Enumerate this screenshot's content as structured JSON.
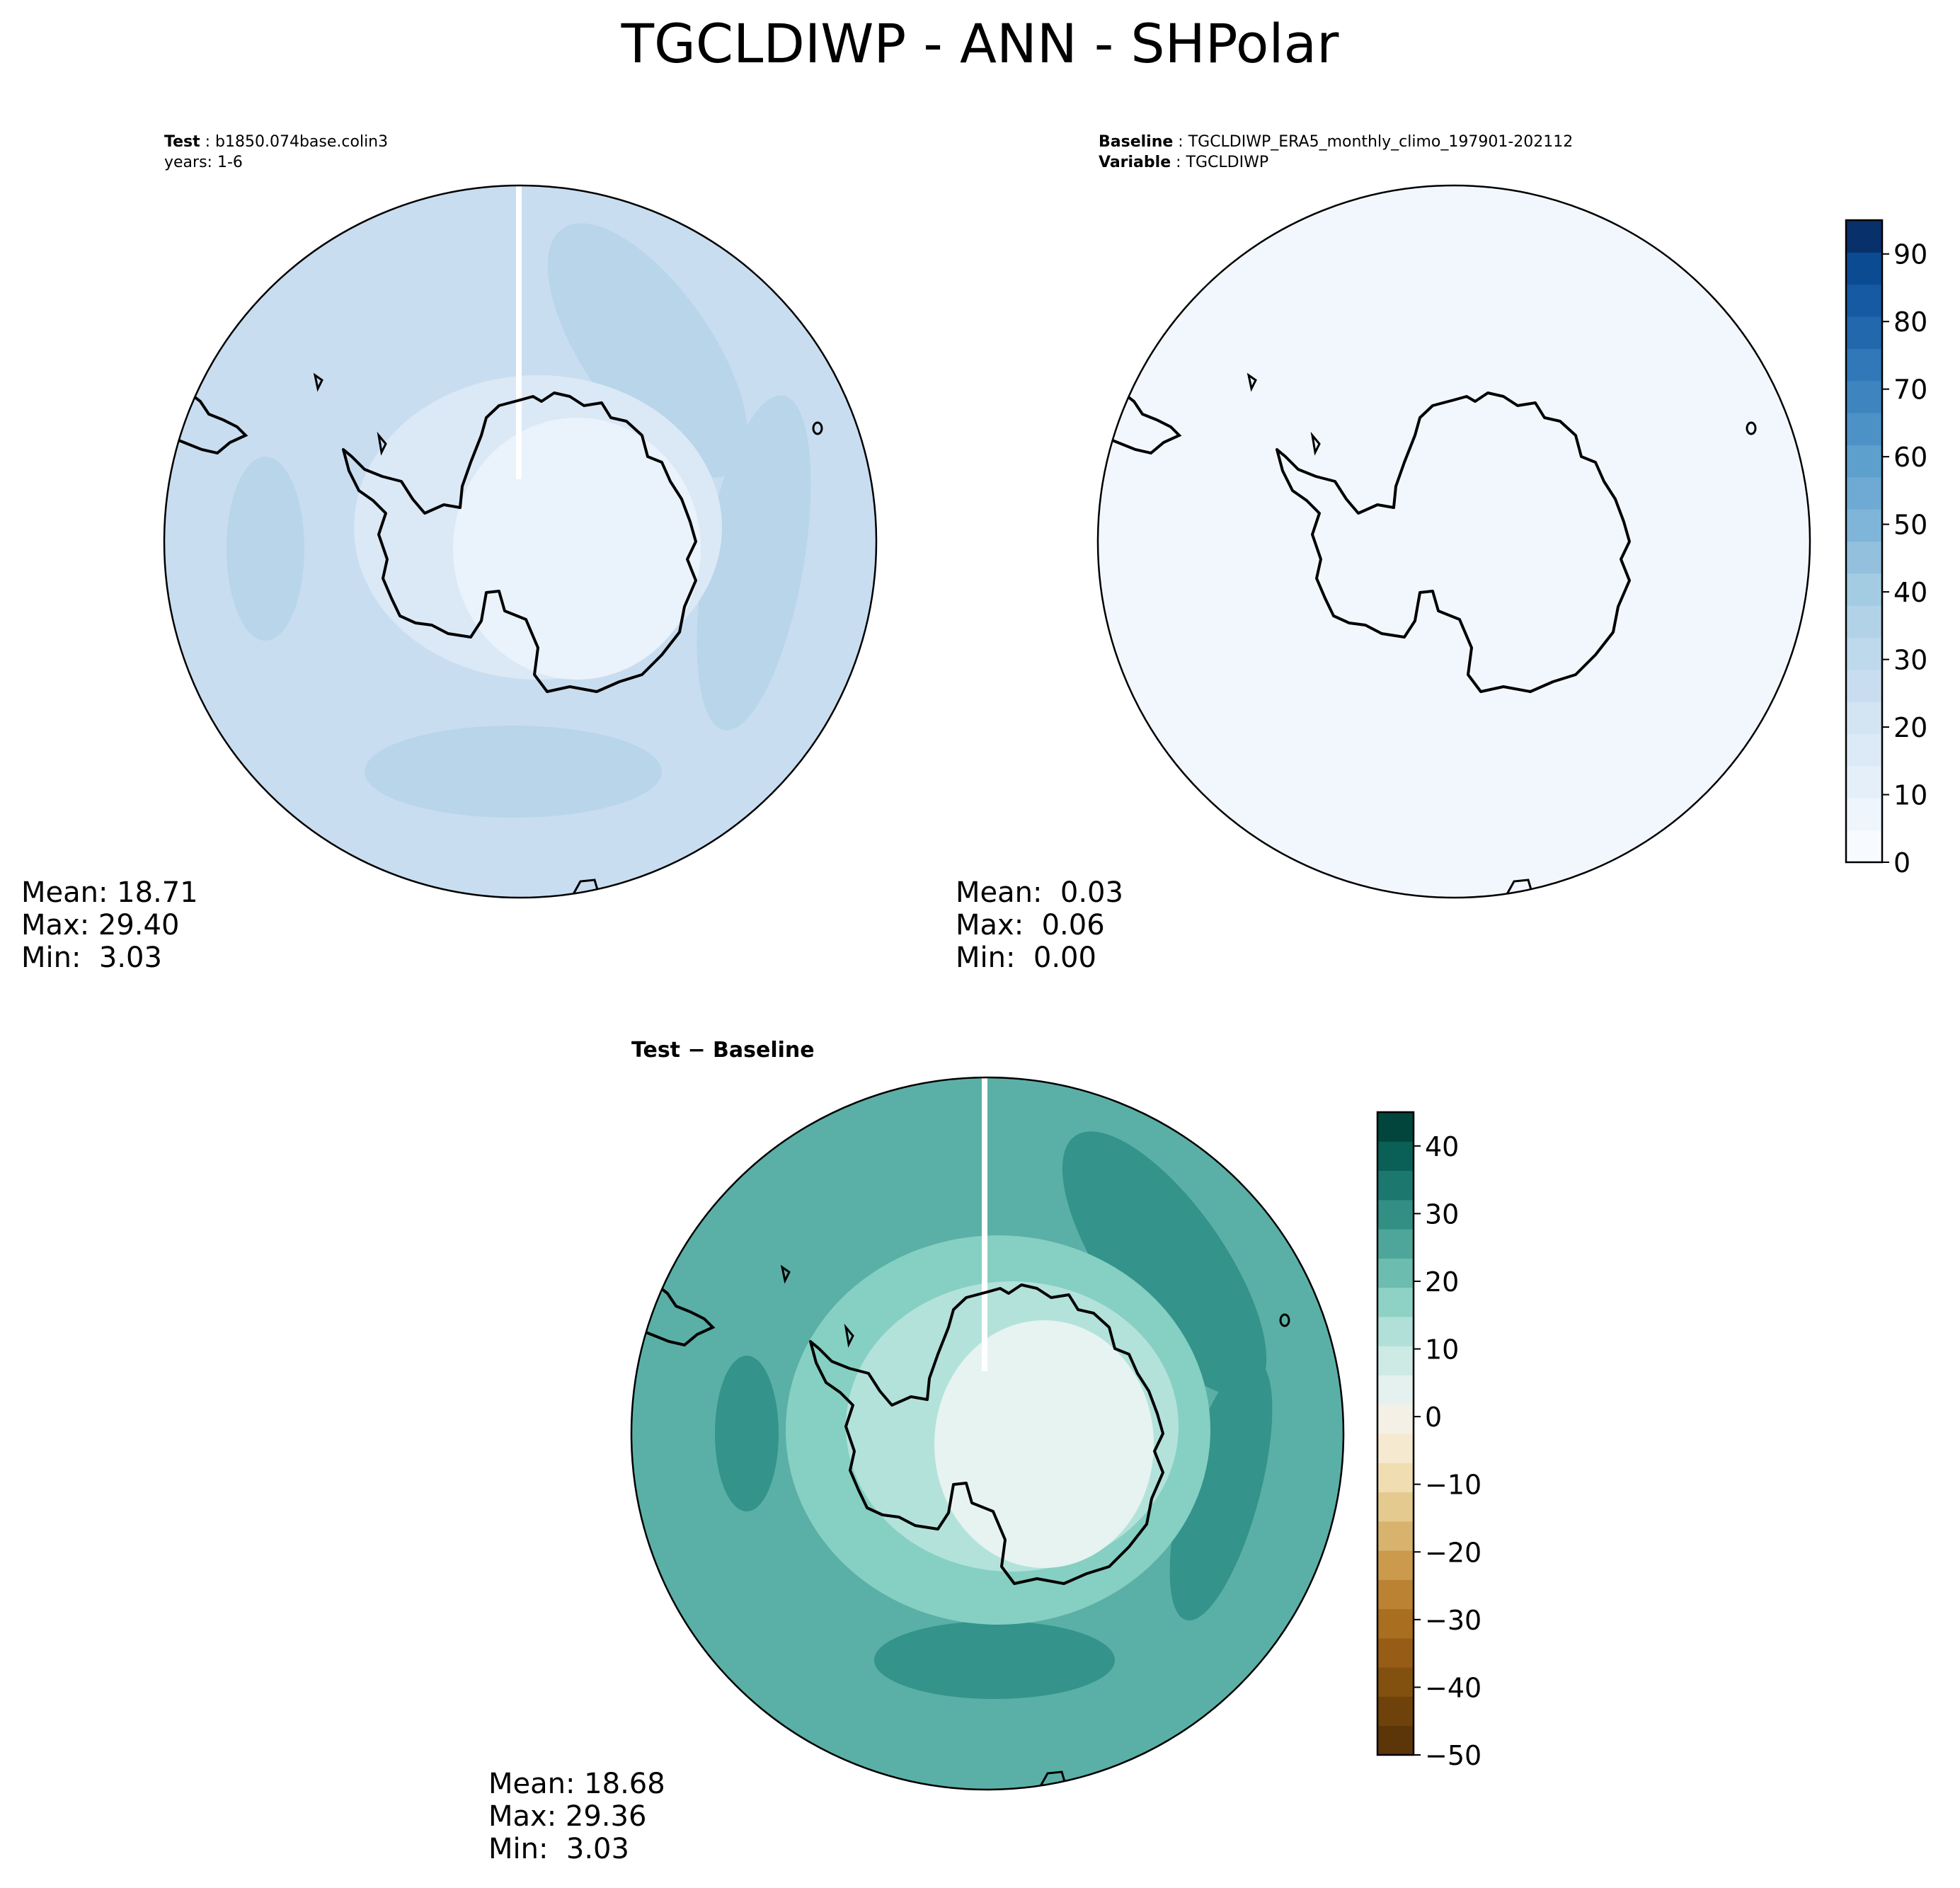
{
  "title": "TGCLDIWP - ANN - SHPolar",
  "panels": {
    "test": {
      "header_key": "Test",
      "header_value": "b1850.074base.colin3",
      "header_line2": "years: 1-6",
      "stats": {
        "mean": "Mean: 18.71",
        "max": "Max: 29.40",
        "min": "Min:  3.03"
      }
    },
    "baseline": {
      "header_key": "Baseline",
      "header_value": "TGCLDIWP_ERA5_monthly_climo_197901-202112",
      "header_key2": "Variable",
      "header_value2": "TGCLDIWP",
      "stats": {
        "mean": "Mean:  0.03",
        "max": "Max:  0.06",
        "min": "Min:  0.00"
      }
    },
    "difference": {
      "title": "Test − Baseline",
      "stats": {
        "mean": "Mean: 18.68",
        "max": "Max: 29.36",
        "min": "Min:  3.03"
      }
    }
  },
  "chart_data": [
    {
      "type": "heatmap",
      "name": "Test",
      "projection": "south-polar-stereographic",
      "field_summary": {
        "mean": 18.71,
        "max": 29.4,
        "min": 3.03
      },
      "colormap": "Blues",
      "colorbar_ref": "main"
    },
    {
      "type": "heatmap",
      "name": "Baseline",
      "projection": "south-polar-stereographic",
      "field_summary": {
        "mean": 0.03,
        "max": 0.06,
        "min": 0.0
      },
      "colormap": "Blues",
      "colorbar_ref": "main"
    },
    {
      "type": "heatmap",
      "name": "Test − Baseline",
      "projection": "south-polar-stereographic",
      "field_summary": {
        "mean": 18.68,
        "max": 29.36,
        "min": 3.03
      },
      "colormap": "BrBG",
      "colorbar_ref": "diff"
    }
  ],
  "colorbars": {
    "main": {
      "ylim": [
        0,
        95
      ],
      "step": 5,
      "ticks": [
        0,
        10,
        20,
        30,
        40,
        50,
        60,
        70,
        80,
        90
      ],
      "tick_labels": [
        "0",
        "10",
        "20",
        "30",
        "40",
        "50",
        "60",
        "70",
        "80",
        "90"
      ],
      "colors": [
        "#f7fbff",
        "#eef5fc",
        "#e5eff9",
        "#dce9f6",
        "#d3e4f3",
        "#c9ddf0",
        "#bed8ec",
        "#b1d2e7",
        "#a3cbe2",
        "#92c0dd",
        "#7fb5d8",
        "#6eaad3",
        "#5d9fcd",
        "#4d92c6",
        "#3e85bf",
        "#3078b7",
        "#2268ad",
        "#155aa2",
        "#0b4b92",
        "#08306b"
      ]
    },
    "diff": {
      "ylim": [
        -50,
        45
      ],
      "step": 5,
      "ticks": [
        -50,
        -40,
        -30,
        -20,
        -10,
        0,
        10,
        20,
        30,
        40
      ],
      "tick_labels": [
        "−50",
        "−40",
        "−30",
        "−20",
        "−10",
        "0",
        "10",
        "20",
        "30",
        "40"
      ],
      "colors": [
        "#5c3508",
        "#6f420b",
        "#82500f",
        "#975d16",
        "#a96e20",
        "#bb8234",
        "#cb9a4d",
        "#d8b36d",
        "#e5ca90",
        "#f0ddb2",
        "#f5ead0",
        "#f5f0e6",
        "#e4f1ef",
        "#cdeae5",
        "#b0e0d8",
        "#8ed1c5",
        "#6cbcb0",
        "#4ea59a",
        "#338e84",
        "#1c776f",
        "#0a5f56",
        "#01453c"
      ]
    }
  },
  "colors": {
    "test_fill": "#c9ddf0",
    "test_low": "#eaf2fb",
    "test_high": "#b8d5ea",
    "baseline_fill": "#f2f7fd",
    "diff_base": "#5ab0a6",
    "diff_light": "#86cfc3",
    "diff_lighter": "#b3e2db",
    "diff_center": "#e6f3f1",
    "diff_dark": "#34938a"
  }
}
